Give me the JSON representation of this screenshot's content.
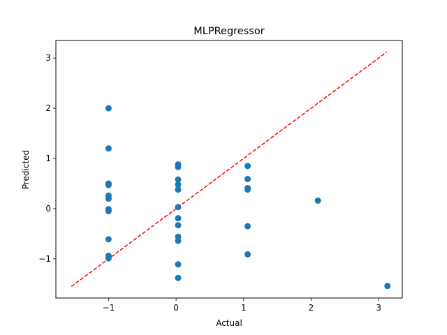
{
  "chart_data": {
    "type": "scatter",
    "title": "MLPRegressor",
    "xlabel": "Actual",
    "ylabel": "Predicted",
    "xlim": [
      -1.78,
      3.35
    ],
    "ylim": [
      -1.78,
      3.35
    ],
    "xticks": [
      -1,
      0,
      1,
      2,
      3
    ],
    "xtick_labels": [
      "−1",
      "0",
      "1",
      "2",
      "3"
    ],
    "yticks": [
      -1,
      0,
      1,
      2,
      3
    ],
    "ytick_labels": [
      "−1",
      "0",
      "1",
      "2",
      "3"
    ],
    "grid": false,
    "point_color": "#1f77b4",
    "reference_line": {
      "style": "dashed",
      "color": "#ff0000",
      "from": [
        -1.55,
        -1.55
      ],
      "to": [
        3.12,
        3.12
      ]
    },
    "points": [
      {
        "x": -1.0,
        "y": 2.0
      },
      {
        "x": -1.0,
        "y": 1.2
      },
      {
        "x": -1.0,
        "y": 0.5
      },
      {
        "x": -1.0,
        "y": 0.47
      },
      {
        "x": -1.0,
        "y": 0.26
      },
      {
        "x": -1.0,
        "y": 0.2
      },
      {
        "x": -1.0,
        "y": -0.01
      },
      {
        "x": -1.0,
        "y": -0.05
      },
      {
        "x": -1.0,
        "y": -0.61
      },
      {
        "x": -1.0,
        "y": -0.94
      },
      {
        "x": -1.0,
        "y": -0.99
      },
      {
        "x": 0.03,
        "y": 0.88
      },
      {
        "x": 0.03,
        "y": 0.83
      },
      {
        "x": 0.03,
        "y": 0.58
      },
      {
        "x": 0.03,
        "y": 0.48
      },
      {
        "x": 0.03,
        "y": 0.38
      },
      {
        "x": 0.03,
        "y": 0.03
      },
      {
        "x": 0.03,
        "y": -0.19
      },
      {
        "x": 0.03,
        "y": -0.33
      },
      {
        "x": 0.03,
        "y": -0.56
      },
      {
        "x": 0.03,
        "y": -0.64
      },
      {
        "x": 0.03,
        "y": -1.11
      },
      {
        "x": 0.03,
        "y": -1.38
      },
      {
        "x": 1.06,
        "y": 0.85
      },
      {
        "x": 1.06,
        "y": 0.59
      },
      {
        "x": 1.06,
        "y": 0.41
      },
      {
        "x": 1.06,
        "y": 0.38
      },
      {
        "x": 1.06,
        "y": -0.35
      },
      {
        "x": 1.06,
        "y": -0.91
      },
      {
        "x": 2.1,
        "y": 0.16
      },
      {
        "x": 3.13,
        "y": -1.54
      }
    ]
  }
}
